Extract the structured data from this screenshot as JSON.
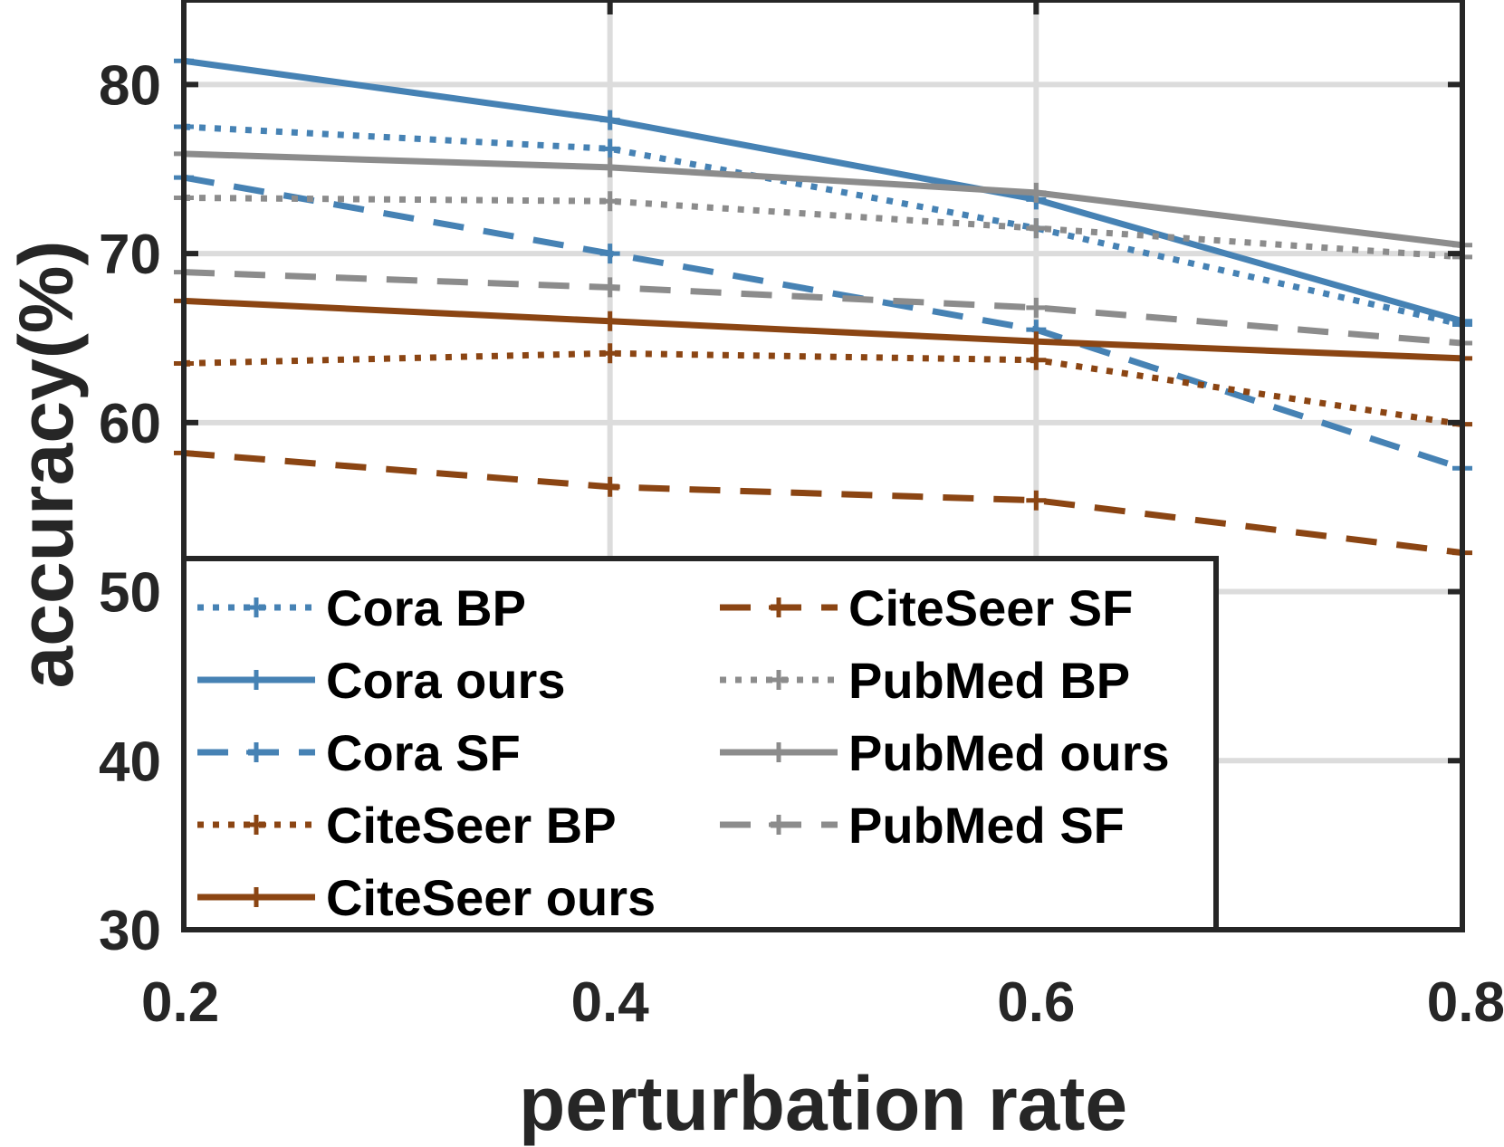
{
  "chart_data": {
    "type": "line",
    "title": "",
    "xlabel": "perturbation rate",
    "ylabel": "accuracy(%)",
    "x": [
      0.2,
      0.4,
      0.6,
      0.8
    ],
    "x_tick_labels": [
      "0.2",
      "0.4",
      "0.6",
      "0.8"
    ],
    "xlim": [
      0.2,
      0.8
    ],
    "y_ticks": [
      30,
      40,
      50,
      60,
      70,
      80
    ],
    "y_tick_labels": [
      "30",
      "40",
      "50",
      "60",
      "70",
      "80"
    ],
    "ylim": [
      30,
      85
    ],
    "grid": true,
    "legend_position": "bottom-left",
    "series": [
      {
        "name": "Cora BP",
        "color": "#4682B4",
        "dash": "dotted",
        "values": [
          77.5,
          76.2,
          71.5,
          65.8
        ]
      },
      {
        "name": "Cora ours",
        "color": "#4682B4",
        "dash": "solid",
        "values": [
          81.4,
          77.9,
          73.2,
          66.0
        ]
      },
      {
        "name": "Cora SF",
        "color": "#4682B4",
        "dash": "dashed",
        "values": [
          74.5,
          70.0,
          65.5,
          57.3
        ]
      },
      {
        "name": "CiteSeer BP",
        "color": "#8B4513",
        "dash": "dotted",
        "values": [
          63.5,
          64.1,
          63.7,
          59.9
        ]
      },
      {
        "name": "CiteSeer ours",
        "color": "#8B4513",
        "dash": "solid",
        "values": [
          67.2,
          66.0,
          64.8,
          63.8
        ]
      },
      {
        "name": "CiteSeer SF",
        "color": "#8B4513",
        "dash": "dashed",
        "values": [
          58.2,
          56.2,
          55.4,
          52.3
        ]
      },
      {
        "name": "PubMed BP",
        "color": "#8C8C8C",
        "dash": "dotted",
        "values": [
          73.3,
          73.1,
          71.5,
          69.8
        ]
      },
      {
        "name": "PubMed ours",
        "color": "#8C8C8C",
        "dash": "solid",
        "values": [
          75.9,
          75.1,
          73.6,
          70.5
        ]
      },
      {
        "name": "PubMed SF",
        "color": "#8C8C8C",
        "dash": "dashed",
        "values": [
          68.9,
          68.0,
          66.8,
          64.7
        ]
      }
    ]
  }
}
